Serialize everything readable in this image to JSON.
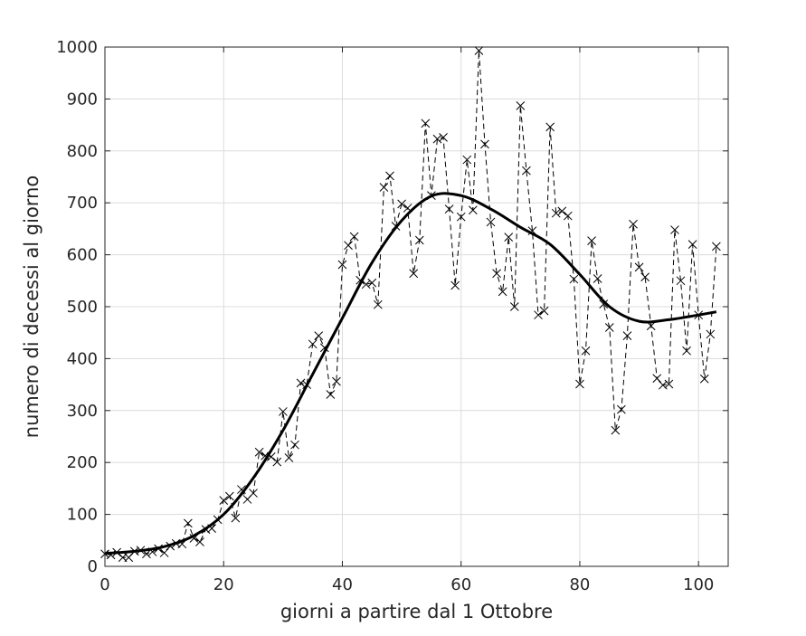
{
  "chart_data": {
    "type": "line",
    "xlabel": "giorni a partire dal 1 Ottobre",
    "ylabel": "numero di decessi al giorno",
    "xlim": [
      0,
      105
    ],
    "ylim": [
      0,
      1000
    ],
    "xticks": [
      0,
      20,
      40,
      60,
      80,
      100
    ],
    "yticks": [
      0,
      100,
      200,
      300,
      400,
      500,
      600,
      700,
      800,
      900,
      1000
    ],
    "grid": true,
    "series": [
      {
        "style": "dashed-with-x-markers",
        "color": "#000000",
        "x": [
          0,
          1,
          2,
          3,
          4,
          5,
          6,
          7,
          8,
          9,
          10,
          11,
          12,
          13,
          14,
          15,
          16,
          17,
          18,
          19,
          20,
          21,
          22,
          23,
          24,
          25,
          26,
          27,
          28,
          29,
          30,
          31,
          32,
          33,
          34,
          35,
          36,
          37,
          38,
          39,
          40,
          41,
          42,
          43,
          44,
          45,
          46,
          47,
          48,
          49,
          50,
          51,
          52,
          53,
          54,
          55,
          56,
          57,
          58,
          59,
          60,
          61,
          62,
          63,
          64,
          65,
          66,
          67,
          68,
          69,
          70,
          71,
          72,
          73,
          74,
          75,
          76,
          77,
          78,
          79,
          80,
          81,
          82,
          83,
          84,
          85,
          86,
          87,
          88,
          89,
          90,
          91,
          92,
          93,
          94,
          95,
          96,
          97,
          98,
          99,
          100,
          101,
          102,
          103
        ],
        "y": [
          24,
          22,
          27,
          17,
          17,
          29,
          31,
          24,
          28,
          34,
          26,
          39,
          44,
          43,
          83,
          54,
          47,
          71,
          73,
          90,
          127,
          135,
          93,
          148,
          129,
          141,
          220,
          213,
          211,
          201,
          298,
          209,
          234,
          353,
          350,
          428,
          444,
          421,
          331,
          356,
          581,
          618,
          635,
          551,
          543,
          546,
          504,
          730,
          752,
          655,
          698,
          690,
          564,
          628,
          853,
          714,
          823,
          826,
          688,
          541,
          673,
          783,
          686,
          993,
          813,
          663,
          564,
          529,
          634,
          500,
          887,
          762,
          646,
          484,
          492,
          846,
          680,
          684,
          675,
          553,
          351,
          415,
          627,
          554,
          505,
          460,
          262,
          302,
          444,
          659,
          576,
          557,
          463,
          362,
          349,
          351,
          648,
          550,
          415,
          620,
          484,
          361,
          447,
          616
        ]
      },
      {
        "style": "solid-smooth",
        "color": "#000000",
        "x": [
          0,
          5,
          10,
          15,
          20,
          25,
          30,
          35,
          40,
          45,
          50,
          55,
          60,
          65,
          70,
          75,
          80,
          85,
          90,
          95,
          100,
          103
        ],
        "y": [
          25,
          29,
          38,
          59,
          100,
          170,
          262,
          370,
          478,
          585,
          666,
          713,
          714,
          688,
          653,
          620,
          562,
          500,
          472,
          475,
          484,
          490
        ]
      }
    ]
  }
}
